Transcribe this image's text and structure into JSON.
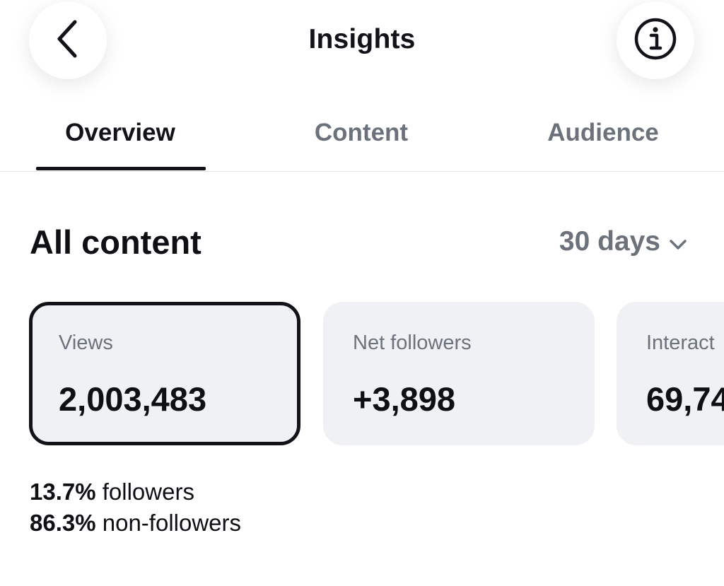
{
  "header": {
    "title": "Insights",
    "back_icon": "chevron-left-icon",
    "info_icon": "info-icon"
  },
  "tabs": [
    {
      "label": "Overview",
      "active": true
    },
    {
      "label": "Content",
      "active": false
    },
    {
      "label": "Audience",
      "active": false
    }
  ],
  "section": {
    "title": "All content",
    "period": "30 days",
    "period_icon": "chevron-down-icon"
  },
  "cards": [
    {
      "label": "Views",
      "value": "2,003,483",
      "selected": true
    },
    {
      "label": "Net followers",
      "value": "+3,898",
      "selected": false
    },
    {
      "label": "Interact",
      "value": "69,74",
      "selected": false
    }
  ],
  "breakdown": {
    "followers_pct": "13.7%",
    "followers_label": " followers",
    "nonfollowers_pct": "86.3%",
    "nonfollowers_label": " non-followers"
  },
  "colors": {
    "text": "#111318",
    "muted": "#6c727c",
    "card_bg": "#f0f1f4"
  }
}
